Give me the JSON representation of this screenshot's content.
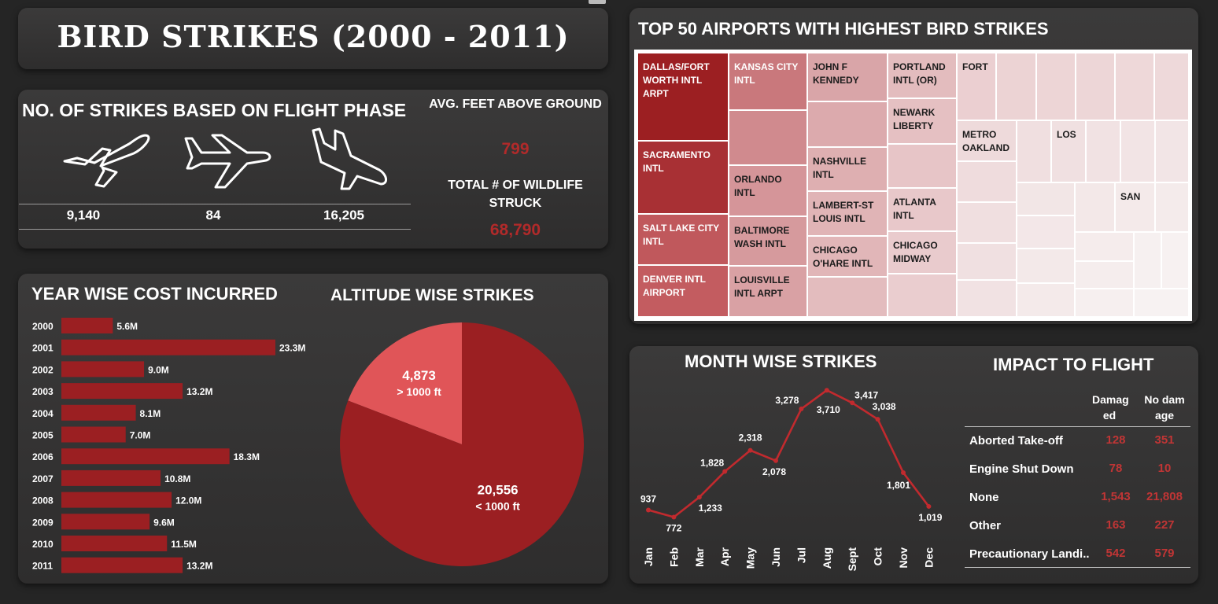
{
  "title": "BIRD STRIKES (2000 - 2011)",
  "flight_phase": {
    "title": "NO. OF STRIKES BASED ON FLIGHT PHASE",
    "phases": [
      {
        "icon": "airplane-takeoff-icon",
        "value": "9,140"
      },
      {
        "icon": "airplane-cruise-icon",
        "value": "84"
      },
      {
        "icon": "airplane-landing-icon",
        "value": "16,205"
      }
    ]
  },
  "kpis": {
    "avg_feet_label": "AVG. FEET ABOVE GROUND",
    "avg_feet_value": "799",
    "wildlife_label": "TOTAL # OF WILDLIFE STRUCK",
    "wildlife_value": "68,790"
  },
  "year_cost": {
    "title": "YEAR WISE COST INCURRED"
  },
  "altitude": {
    "title": "ALTITUDE WISE STRIKES"
  },
  "airports": {
    "title": "TOP 50 AIRPORTS WITH HIGHEST BIRD STRIKES"
  },
  "month": {
    "title": "MONTH WISE STRIKES"
  },
  "impact": {
    "title": "IMPACT TO FLIGHT",
    "col_damaged": "Damag ed",
    "col_no_damage": "No dam age",
    "rows": [
      {
        "label": "Aborted Take-off",
        "damaged": "128",
        "no_damage": "351"
      },
      {
        "label": "Engine Shut Down",
        "damaged": "78",
        "no_damage": "10"
      },
      {
        "label": "None",
        "damaged": "1,543",
        "no_damage": "21,808"
      },
      {
        "label": "Other",
        "damaged": "163",
        "no_damage": "227"
      },
      {
        "label": "Precautionary Landi..",
        "damaged": "542",
        "no_damage": "579"
      }
    ]
  },
  "colors": {
    "accent": "#9b1f22",
    "accent_light": "#e05558",
    "value_red": "#b12a2a"
  },
  "chart_data": [
    {
      "type": "bar",
      "title": "YEAR WISE COST INCURRED",
      "categories": [
        "2000",
        "2001",
        "2002",
        "2003",
        "2004",
        "2005",
        "2006",
        "2007",
        "2008",
        "2009",
        "2010",
        "2011"
      ],
      "values": [
        5.6,
        23.3,
        9.0,
        13.2,
        8.1,
        7.0,
        18.3,
        10.8,
        12.0,
        9.6,
        11.5,
        13.2
      ],
      "labels": [
        "5.6M",
        "23.3M",
        "9.0M",
        "13.2M",
        "8.1M",
        "7.0M",
        "18.3M",
        "10.8M",
        "12.0M",
        "9.6M",
        "11.5M",
        "13.2M"
      ],
      "orientation": "horizontal"
    },
    {
      "type": "pie",
      "title": "ALTITUDE WISE STRIKES",
      "slices": [
        {
          "label": "> 1000 ft",
          "value": 4873,
          "text": "4,873"
        },
        {
          "label": "< 1000 ft",
          "value": 20556,
          "text": "20,556"
        }
      ]
    },
    {
      "type": "line",
      "title": "MONTH WISE STRIKES",
      "x": [
        "Jan",
        "Feb",
        "Mar",
        "Apr",
        "May",
        "Jun",
        "Jul",
        "Aug",
        "Sept",
        "Oct",
        "Nov",
        "Dec"
      ],
      "values": [
        937,
        772,
        1233,
        1828,
        2318,
        2078,
        3278,
        3710,
        3417,
        3038,
        1801,
        1019
      ],
      "labels": [
        "937",
        "772",
        "1,233",
        "1,828",
        "2,318",
        "2,078",
        "3,278",
        "3,710",
        "3,417",
        "3,038",
        "1,801",
        "1,019"
      ]
    },
    {
      "type": "treemap",
      "title": "TOP 50 AIRPORTS WITH HIGHEST BIRD STRIKES",
      "labeled_airports": [
        "DALLAS/FORT WORTH INTL ARPT",
        "SACRAMENTO INTL",
        "SALT LAKE CITY INTL",
        "DENVER INTL AIRPORT",
        "KANSAS CITY INTL",
        "ORLANDO INTL",
        "BALTIMORE WASH INTL",
        "LOUISVILLE INTL ARPT",
        "JOHN F KENNEDY",
        "NASHVILLE INTL",
        "LAMBERT-ST LOUIS INTL",
        "CHICAGO O'HARE INTL",
        "PORTLAND INTL (OR)",
        "NEWARK LIBERTY",
        "ATLANTA INTL",
        "CHICAGO MIDWAY",
        "FORT",
        "METRO OAKLAND",
        "LOS",
        "SAN"
      ]
    }
  ]
}
